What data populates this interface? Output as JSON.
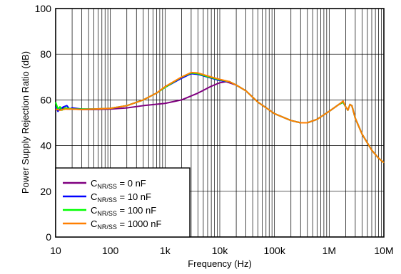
{
  "chart_data": {
    "type": "line",
    "title": "",
    "xlabel": "Frequency (Hz)",
    "ylabel": "Power Supply Rejection Ratio (dB)",
    "xscale": "log",
    "xlim": [
      10,
      10000000
    ],
    "ylim": [
      0,
      100
    ],
    "x_tick_values": [
      10,
      100,
      1000,
      10000,
      100000,
      1000000,
      10000000
    ],
    "x_tick_labels": [
      "10",
      "100",
      "1k",
      "10k",
      "100k",
      "1M",
      "10M"
    ],
    "y_tick_values": [
      0,
      20,
      40,
      60,
      80,
      100
    ],
    "y_tick_labels": [
      "0",
      "20",
      "40",
      "60",
      "80",
      "100"
    ],
    "grid": true,
    "legend_position": "bottom-left",
    "series": [
      {
        "name": "C_NR/SS = 0 nF",
        "label_main": "C",
        "label_sub": "NR/SS",
        "label_rest": " = 0 nF",
        "color": "#800080",
        "points": [
          [
            10,
            56
          ],
          [
            12,
            55.5
          ],
          [
            14,
            56.5
          ],
          [
            16,
            56
          ],
          [
            20,
            56
          ],
          [
            30,
            55.8
          ],
          [
            50,
            55.8
          ],
          [
            100,
            56
          ],
          [
            200,
            56.5
          ],
          [
            400,
            57.5
          ],
          [
            1000,
            58.5
          ],
          [
            2000,
            60
          ],
          [
            4000,
            63
          ],
          [
            7000,
            66
          ],
          [
            10000,
            67.5
          ],
          [
            13000,
            68
          ],
          [
            20000,
            66.5
          ],
          [
            30000,
            64
          ],
          [
            50000,
            59
          ],
          [
            100000,
            54
          ],
          [
            200000,
            51
          ],
          [
            300000,
            50
          ],
          [
            400000,
            50
          ],
          [
            600000,
            51.5
          ],
          [
            1000000,
            55
          ],
          [
            1500000,
            58
          ],
          [
            1800000,
            59
          ],
          [
            2000000,
            57
          ],
          [
            2200000,
            55.5
          ],
          [
            2400000,
            58
          ],
          [
            2600000,
            57.5
          ],
          [
            3000000,
            52
          ],
          [
            4000000,
            45
          ],
          [
            6000000,
            38
          ],
          [
            8000000,
            34.5
          ],
          [
            10000000,
            32.5
          ]
        ]
      },
      {
        "name": "C_NR/SS = 10 nF",
        "label_main": "C",
        "label_sub": "NR/SS",
        "label_rest": " = 10 nF",
        "color": "#0000ff",
        "points": [
          [
            10,
            57
          ],
          [
            11,
            55
          ],
          [
            12,
            56
          ],
          [
            14,
            57
          ],
          [
            16,
            57.5
          ],
          [
            18,
            56
          ],
          [
            20,
            56.5
          ],
          [
            30,
            56
          ],
          [
            50,
            56
          ],
          [
            100,
            56.3
          ],
          [
            200,
            57.5
          ],
          [
            400,
            60
          ],
          [
            700,
            63
          ],
          [
            1000,
            65.5
          ],
          [
            2000,
            69.5
          ],
          [
            3000,
            71.5
          ],
          [
            4000,
            71.2
          ],
          [
            6000,
            70
          ],
          [
            10000,
            68.5
          ],
          [
            15000,
            68
          ],
          [
            20000,
            66.5
          ],
          [
            30000,
            64
          ],
          [
            50000,
            59
          ],
          [
            100000,
            54
          ],
          [
            200000,
            51
          ],
          [
            300000,
            50
          ],
          [
            400000,
            50
          ],
          [
            600000,
            51.5
          ],
          [
            1000000,
            55
          ],
          [
            1500000,
            58
          ],
          [
            1800000,
            59
          ],
          [
            2000000,
            57
          ],
          [
            2200000,
            55.5
          ],
          [
            2400000,
            58
          ],
          [
            2600000,
            57.5
          ],
          [
            3000000,
            52
          ],
          [
            4000000,
            45
          ],
          [
            6000000,
            38
          ],
          [
            8000000,
            34.5
          ],
          [
            10000000,
            32.5
          ]
        ]
      },
      {
        "name": "C_NR/SS = 100 nF",
        "label_main": "C",
        "label_sub": "NR/SS",
        "label_rest": " = 100 nF",
        "color": "#00ff00",
        "points": [
          [
            10,
            59
          ],
          [
            11,
            56
          ],
          [
            12,
            57
          ],
          [
            13,
            55.5
          ],
          [
            15,
            56.5
          ],
          [
            20,
            56
          ],
          [
            30,
            56
          ],
          [
            50,
            56
          ],
          [
            100,
            56.3
          ],
          [
            200,
            57.5
          ],
          [
            400,
            60
          ],
          [
            700,
            63
          ],
          [
            1000,
            65.5
          ],
          [
            2000,
            70
          ],
          [
            3000,
            71.8
          ],
          [
            4000,
            71.5
          ],
          [
            6000,
            70.2
          ],
          [
            10000,
            68.8
          ],
          [
            15000,
            68
          ],
          [
            20000,
            66.5
          ],
          [
            30000,
            64
          ],
          [
            50000,
            59
          ],
          [
            100000,
            54
          ],
          [
            200000,
            51
          ],
          [
            300000,
            50
          ],
          [
            400000,
            50
          ],
          [
            600000,
            51.5
          ],
          [
            1000000,
            55
          ],
          [
            1500000,
            58
          ],
          [
            1800000,
            59
          ],
          [
            2000000,
            57
          ],
          [
            2200000,
            55.5
          ],
          [
            2400000,
            58
          ],
          [
            2600000,
            57.5
          ],
          [
            3000000,
            52
          ],
          [
            4000000,
            45
          ],
          [
            6000000,
            38
          ],
          [
            8000000,
            34.5
          ],
          [
            10000000,
            32.5
          ]
        ]
      },
      {
        "name": "C_NR/SS = 1000 nF",
        "label_main": "C",
        "label_sub": "NR/SS",
        "label_rest": " = 1000 nF",
        "color": "#ff7f00",
        "points": [
          [
            10,
            56
          ],
          [
            12,
            55.5
          ],
          [
            15,
            56
          ],
          [
            20,
            56
          ],
          [
            30,
            55.8
          ],
          [
            50,
            56
          ],
          [
            100,
            56.3
          ],
          [
            200,
            57.5
          ],
          [
            400,
            60
          ],
          [
            700,
            63
          ],
          [
            1000,
            65.8
          ],
          [
            2000,
            70
          ],
          [
            3000,
            72
          ],
          [
            4000,
            71.8
          ],
          [
            6000,
            70.5
          ],
          [
            10000,
            69
          ],
          [
            15000,
            68
          ],
          [
            20000,
            66.5
          ],
          [
            30000,
            64
          ],
          [
            50000,
            59
          ],
          [
            100000,
            54
          ],
          [
            200000,
            51
          ],
          [
            300000,
            50
          ],
          [
            400000,
            50
          ],
          [
            600000,
            51.5
          ],
          [
            1000000,
            55
          ],
          [
            1500000,
            58
          ],
          [
            1800000,
            59.5
          ],
          [
            2000000,
            57
          ],
          [
            2200000,
            55.5
          ],
          [
            2400000,
            58
          ],
          [
            2600000,
            57.5
          ],
          [
            3000000,
            52
          ],
          [
            4000000,
            45
          ],
          [
            6000000,
            38
          ],
          [
            8000000,
            34.5
          ],
          [
            10000000,
            32.5
          ]
        ]
      }
    ]
  }
}
